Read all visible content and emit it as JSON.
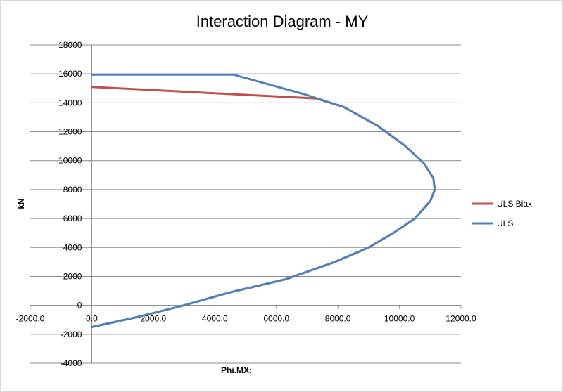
{
  "chart_data": {
    "type": "line",
    "title": "Interaction Diagram - MY",
    "xlabel": "Phi.MX;",
    "ylabel": "kN",
    "xlim": [
      -2000,
      12000
    ],
    "ylim": [
      -4000,
      18000
    ],
    "x_ticks": [
      -2000,
      0,
      2000,
      4000,
      6000,
      8000,
      10000,
      12000
    ],
    "x_tick_labels": [
      "-2000.0",
      "0.0",
      "2000.0",
      "4000.0",
      "6000.0",
      "8000.0",
      "10000.0",
      "12000.0"
    ],
    "y_ticks": [
      -4000,
      -2000,
      0,
      2000,
      4000,
      6000,
      8000,
      10000,
      12000,
      14000,
      16000,
      18000
    ],
    "y_tick_labels": [
      "-4000",
      "-2000",
      "0",
      "2000",
      "4000",
      "6000",
      "8000",
      "10000",
      "12000",
      "14000",
      "16000",
      "18000"
    ],
    "grid": "horizontal",
    "legend": "right",
    "series": [
      {
        "name": "ULS Biax",
        "color": "#c0504d",
        "x": [
          0,
          7300,
          8200,
          9300,
          10200,
          10800,
          11100,
          11150,
          11000,
          10500,
          9800,
          9000,
          7900,
          6300,
          4500,
          3000,
          1500,
          0
        ],
        "y": [
          15100,
          14300,
          13700,
          12400,
          11000,
          9800,
          8800,
          8000,
          7200,
          6000,
          5000,
          4000,
          3000,
          1800,
          900,
          0,
          -800,
          -1500
        ]
      },
      {
        "name": "ULS",
        "color": "#4f81bd",
        "x": [
          0,
          4600,
          6900,
          8200,
          9300,
          10200,
          10800,
          11100,
          11150,
          11000,
          10500,
          9800,
          9000,
          7900,
          6300,
          4500,
          3000,
          1500,
          0
        ],
        "y": [
          15950,
          15950,
          14600,
          13700,
          12400,
          11000,
          9800,
          8800,
          8000,
          7200,
          6000,
          5000,
          4000,
          3000,
          1800,
          900,
          0,
          -800,
          -1500
        ]
      }
    ]
  }
}
